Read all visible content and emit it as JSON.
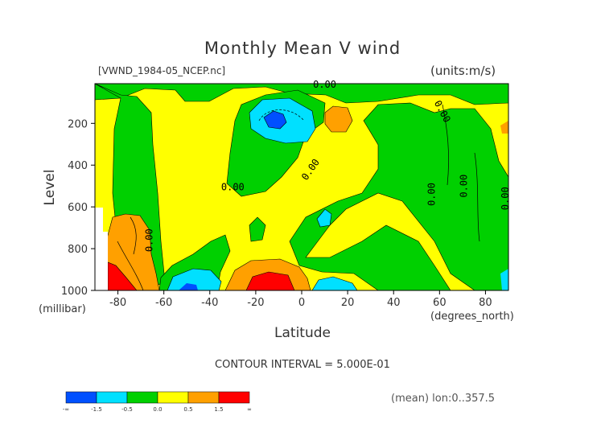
{
  "chart_data": {
    "type": "heatmap",
    "title": "Monthly Mean V wind",
    "file_label": "[VWND_1984-05_NCEP.nc]",
    "units_label": "(units:m/s)",
    "xlabel": "Latitude",
    "x_unit_label": "(degrees_north)",
    "ylabel": "Level",
    "y_unit_label": "(millibar)",
    "xlim": [
      -90,
      90
    ],
    "ylim": [
      1000,
      10
    ],
    "x_ticks": [
      "-80",
      "-60",
      "-40",
      "-20",
      "0",
      "20",
      "40",
      "60",
      "80"
    ],
    "x_tick_values": [
      -80,
      -60,
      -40,
      -20,
      0,
      20,
      40,
      60,
      80
    ],
    "y_ticks": [
      "200",
      "400",
      "600",
      "800",
      "1000"
    ],
    "y_tick_values": [
      200,
      400,
      600,
      800,
      1000
    ],
    "contour_labels": [
      "0.00",
      "0.00",
      "0.00",
      "0.00",
      "0.00",
      "0.00",
      "0.00",
      "0.00"
    ],
    "contour_interval_text": "CONTOUR INTERVAL = 5.000E-01",
    "colorbar": {
      "colors": [
        "#0050ff",
        "#00e0ff",
        "#00d000",
        "#ffff00",
        "#ffa000",
        "#ff0000"
      ],
      "labels": [
        "-∞",
        "-1.5",
        "-0.5",
        "0.0",
        "0.5",
        "1.5",
        "∞"
      ]
    },
    "mean_note": "(mean) lon:0..357.5"
  },
  "colors": {
    "background": "#ffffff",
    "blue": "#0050ff",
    "cyan": "#00e0ff",
    "green": "#00d000",
    "yellow": "#ffff00",
    "orange": "#ffa000",
    "red": "#ff0000"
  }
}
